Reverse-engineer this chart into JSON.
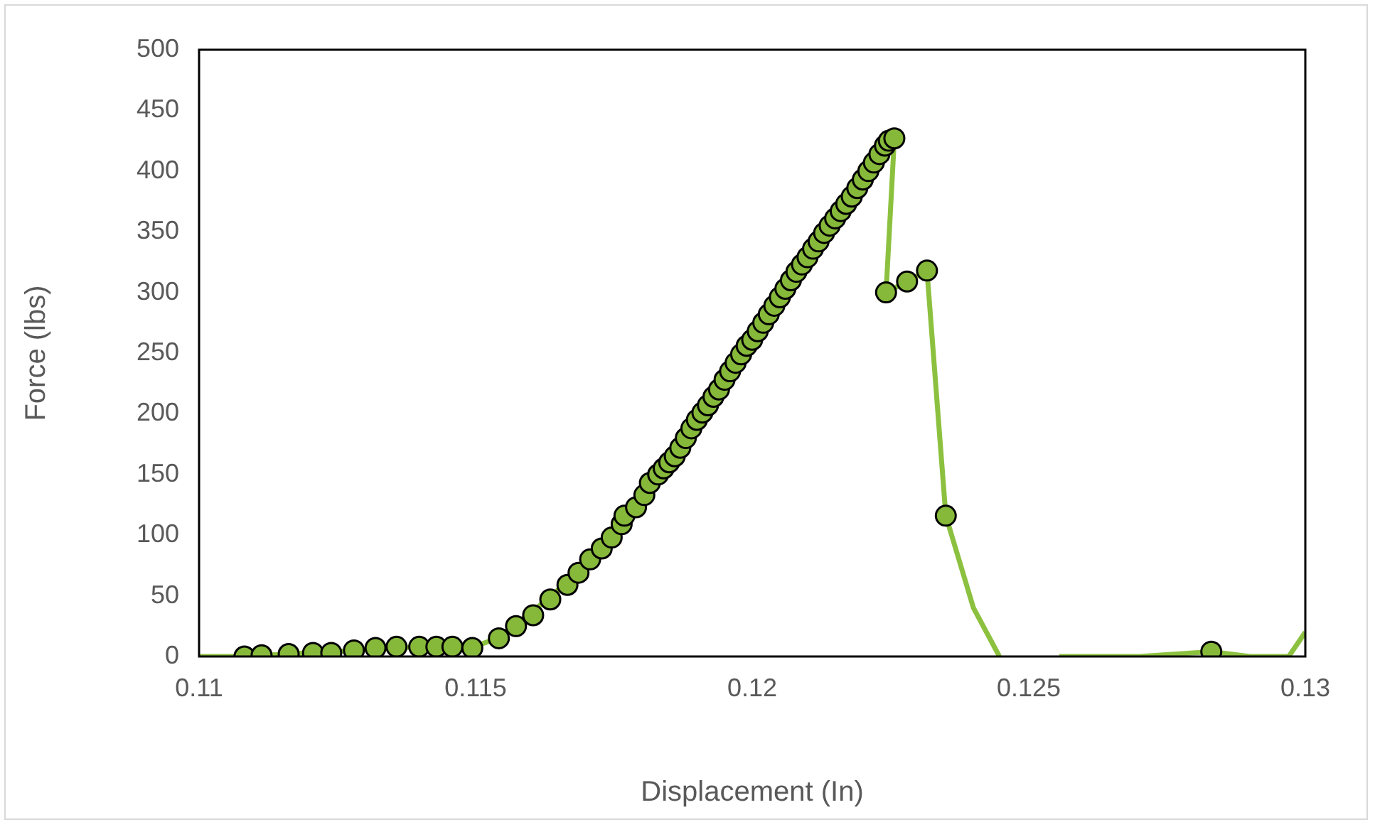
{
  "chart_data": {
    "type": "scatter",
    "xlabel": "Displacement (In)",
    "ylabel": "Force (lbs)",
    "xlim": [
      0.11,
      0.13
    ],
    "xticks": [
      0.11,
      0.115,
      0.12,
      0.125,
      0.13
    ],
    "ylim": [
      0,
      500
    ],
    "yticks": [
      0,
      50,
      100,
      150,
      200,
      250,
      300,
      350,
      400,
      450,
      500
    ],
    "grid": false,
    "legend": false,
    "series": [
      {
        "type": "line",
        "color": "#8cc13f",
        "marker": "none",
        "x": [
          0.11,
          0.1108,
          0.1116,
          0.1128,
          0.114,
          0.1149,
          0.1154,
          0.1163,
          0.1173,
          0.1181,
          0.1192,
          0.12,
          0.1209,
          0.1218,
          0.1224,
          0.12257,
          0.12242,
          0.1228,
          0.12316,
          0.1235,
          0.124,
          0.12447,
          0.125,
          0.12555,
          0.127,
          0.1283,
          0.129,
          0.1297,
          0.13
        ],
        "values": [
          0,
          0,
          2,
          5,
          8,
          7,
          15,
          47,
          89,
          143,
          205,
          263,
          322,
          377,
          424,
          427,
          300,
          309,
          318,
          116,
          40,
          0,
          null,
          0,
          0,
          4,
          0,
          0,
          20
        ]
      },
      {
        "color": "#86b83a",
        "marker": "circle",
        "x": [
          0.11082,
          0.11113,
          0.11162,
          0.11206,
          0.11239,
          0.1128,
          0.11319,
          0.11357,
          0.11398,
          0.11429,
          0.11458,
          0.11494,
          0.11542,
          0.11573,
          0.11604,
          0.11635,
          0.11666,
          0.11686,
          0.11707,
          0.11728,
          0.11746,
          0.11764,
          0.11769,
          0.1179,
          0.11805,
          0.11815,
          0.1183,
          0.1184,
          0.1185,
          0.1186,
          0.1187,
          0.1188,
          0.1189,
          0.119,
          0.1191,
          0.1192,
          0.1193,
          0.1194,
          0.1195,
          0.1196,
          0.1197,
          0.1198,
          0.1199,
          0.12,
          0.1201,
          0.1202,
          0.1203,
          0.1204,
          0.1205,
          0.1206,
          0.1207,
          0.1208,
          0.1209,
          0.121,
          0.1211,
          0.1212,
          0.1213,
          0.1214,
          0.1215,
          0.1216,
          0.1217,
          0.1218,
          0.1219,
          0.122,
          0.1221,
          0.1222,
          0.1223,
          0.1224,
          0.12247,
          0.12257,
          0.12242,
          0.1228,
          0.12316,
          0.1235,
          0.1283
        ],
        "values": [
          0,
          1,
          2,
          3,
          3,
          5,
          7,
          8,
          8,
          8,
          8,
          7,
          15,
          25,
          34,
          47,
          59,
          69,
          80,
          89,
          98,
          109,
          116,
          123,
          133,
          143,
          150,
          155,
          160,
          165,
          172,
          180,
          188,
          195,
          201,
          207,
          214,
          220,
          228,
          235,
          242,
          249,
          256,
          261,
          268,
          275,
          282,
          289,
          296,
          303,
          310,
          317,
          323,
          329,
          336,
          342,
          349,
          355,
          361,
          367,
          373,
          379,
          386,
          393,
          400,
          407,
          414,
          421,
          425,
          427,
          300,
          309,
          318,
          116,
          4
        ]
      }
    ]
  }
}
